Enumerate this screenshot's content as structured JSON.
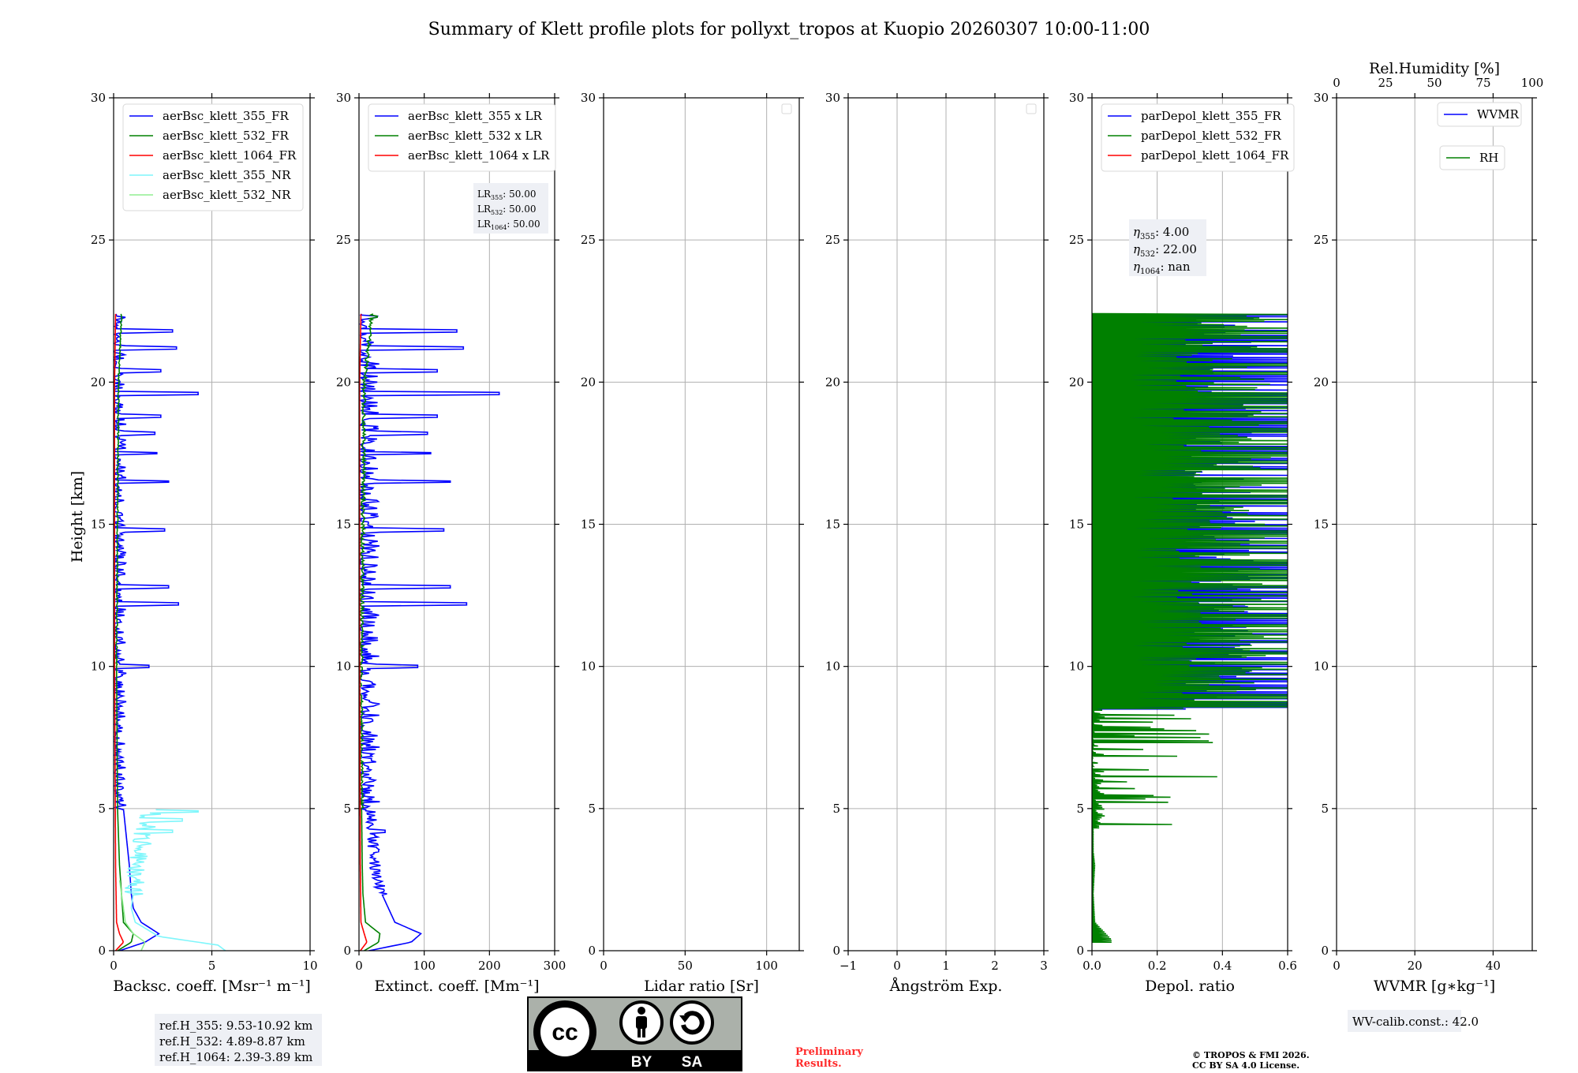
{
  "title": "Summary of Klett profile plots for pollyxt_tropos at Kuopio 20260307 10:00-11:00",
  "colors": {
    "blue": "#0000ff",
    "green": "#008000",
    "red": "#ff0000",
    "cyan": "#7ff6fb",
    "lightgreen": "#90ee90",
    "grid": "#b0b0b0",
    "box": "#eef0f5",
    "notice": "#ff2a2a"
  },
  "ylabel": "Height [km]",
  "height_ticks": [
    0,
    5,
    10,
    15,
    20,
    25,
    30
  ],
  "chart_data": [
    {
      "id": "backscatter",
      "type": "line",
      "xlabel": "Backsc. coeff. [Msr$^{-1}$ m$^{-1}$]",
      "xlabel_display": "Backsc. coeff. [Msr⁻¹ m⁻¹]",
      "xlim": [
        0,
        10
      ],
      "ylim": [
        0,
        30
      ],
      "xticks": [
        0,
        5,
        10
      ],
      "xtick_labels": [
        "0",
        "5",
        "10"
      ],
      "legend": [
        "aerBsc_klett_355_FR",
        "aerBsc_klett_532_FR",
        "aerBsc_klett_1064_FR",
        "aerBsc_klett_355_NR",
        "aerBsc_klett_532_NR"
      ],
      "series": [
        {
          "name": "aerBsc_klett_355_FR",
          "color": "blue",
          "profile": [
            [
              0.0,
              0.3
            ],
            [
              0.3,
              1.6
            ],
            [
              0.6,
              2.3
            ],
            [
              1.0,
              1.4
            ],
            [
              1.5,
              1.0
            ],
            [
              2.0,
              0.9
            ],
            [
              3.0,
              0.8
            ],
            [
              4.0,
              0.65
            ],
            [
              5.0,
              0.5
            ]
          ],
          "noise": {
            "from": 5.0,
            "to": 22.4,
            "base": 0.05,
            "amp": 0.6,
            "max": 4.3,
            "spikes": [
              [
                19.6,
                4.3
              ],
              [
                16.5,
                2.8
              ],
              [
                12.2,
                3.3
              ],
              [
                21.2,
                3.2
              ],
              [
                17.5,
                2.2
              ],
              [
                14.8,
                2.6
              ],
              [
                12.8,
                2.8
              ],
              [
                18.2,
                2.1
              ],
              [
                10.0,
                1.8
              ],
              [
                20.4,
                2.4
              ],
              [
                21.8,
                3.0
              ],
              [
                18.8,
                2.4
              ]
            ]
          }
        },
        {
          "name": "aerBsc_klett_532_FR",
          "color": "green",
          "profile": [
            [
              0.0,
              0.2
            ],
            [
              0.3,
              0.9
            ],
            [
              0.6,
              1.0
            ],
            [
              1.0,
              0.5
            ],
            [
              2.0,
              0.4
            ],
            [
              3.0,
              0.3
            ],
            [
              5.0,
              0.2
            ],
            [
              10.0,
              0.15
            ],
            [
              15.0,
              0.2
            ],
            [
              20.0,
              0.25
            ],
            [
              22.4,
              0.4
            ]
          ],
          "noise": {
            "from": 10.0,
            "to": 22.4,
            "base": 0.0,
            "amp": 0.12,
            "max": 0.6,
            "spikes": []
          }
        },
        {
          "name": "aerBsc_klett_1064_FR",
          "color": "red",
          "profile": [
            [
              0.0,
              0.1
            ],
            [
              0.3,
              0.5
            ],
            [
              0.6,
              0.3
            ],
            [
              1.0,
              0.15
            ],
            [
              3.0,
              0.1
            ],
            [
              10.0,
              0.05
            ],
            [
              20.0,
              0.05
            ],
            [
              22.4,
              0.1
            ]
          ],
          "noise": null
        },
        {
          "name": "aerBsc_klett_355_NR",
          "color": "cyan",
          "profile": [
            [
              0.0,
              5.7
            ],
            [
              0.2,
              5.3
            ],
            [
              0.5,
              2.3
            ],
            [
              1.0,
              1.1
            ],
            [
              1.5,
              0.9
            ],
            [
              2.0,
              1.0
            ],
            [
              3.0,
              1.2
            ],
            [
              4.0,
              1.5
            ],
            [
              5.0,
              2.0
            ]
          ],
          "noise": {
            "from": 2.0,
            "to": 5.0,
            "base": 0.3,
            "amp": 1.8,
            "max": 4.3,
            "spikes": [
              [
                4.9,
                4.3
              ],
              [
                4.6,
                3.5
              ],
              [
                4.2,
                3.0
              ]
            ]
          }
        },
        {
          "name": "aerBsc_klett_532_NR",
          "color": "lightgreen",
          "profile": [
            [
              0.0,
              1.4
            ],
            [
              0.3,
              1.6
            ],
            [
              0.6,
              1.0
            ],
            [
              1.0,
              0.6
            ],
            [
              2.0,
              0.4
            ],
            [
              2.5,
              0.3
            ]
          ],
          "noise": null
        }
      ],
      "info_box": [
        "ref.H_355: 9.53-10.92 km",
        "ref.H_532: 4.89-8.87 km",
        "ref.H_1064: 2.39-3.89 km"
      ]
    },
    {
      "id": "extinction",
      "type": "line",
      "xlabel": "Extinct. coeff. [Mm$^{-1}$]",
      "xlabel_display": "Extinct. coeff. [Mm⁻¹]",
      "xlim": [
        0,
        300
      ],
      "ylim": [
        0,
        30
      ],
      "xticks": [
        0,
        100,
        200,
        300
      ],
      "xtick_labels": [
        "0",
        "100",
        "200",
        "300"
      ],
      "legend": [
        "aerBsc_klett_355 x LR",
        "aerBsc_klett_532 x LR",
        "aerBsc_klett_1064 x LR"
      ],
      "series": [
        {
          "name": "aerBsc_klett_355 x LR",
          "color": "blue",
          "profile": [
            [
              0.0,
              15
            ],
            [
              0.3,
              80
            ],
            [
              0.6,
              95
            ],
            [
              1.0,
              55
            ],
            [
              1.5,
              45
            ],
            [
              2.0,
              35
            ],
            [
              3.0,
              25
            ],
            [
              4.0,
              20
            ],
            [
              5.0,
              18
            ]
          ],
          "noise": {
            "from": 2.0,
            "to": 22.4,
            "base": 2,
            "amp": 30,
            "max": 215,
            "spikes": [
              [
                19.6,
                215
              ],
              [
                16.5,
                140
              ],
              [
                12.2,
                165
              ],
              [
                21.2,
                160
              ],
              [
                17.5,
                110
              ],
              [
                14.8,
                130
              ],
              [
                12.8,
                140
              ],
              [
                18.2,
                105
              ],
              [
                10.0,
                90
              ],
              [
                20.4,
                120
              ],
              [
                21.8,
                150
              ],
              [
                18.8,
                120
              ],
              [
                4.2,
                40
              ],
              [
                3.5,
                30
              ]
            ]
          }
        },
        {
          "name": "aerBsc_klett_532 x LR",
          "color": "green",
          "profile": [
            [
              0.0,
              8
            ],
            [
              0.3,
              30
            ],
            [
              0.6,
              32
            ],
            [
              1.0,
              10
            ],
            [
              2.0,
              6
            ],
            [
              3.0,
              5
            ],
            [
              5.0,
              4
            ],
            [
              10.0,
              3
            ],
            [
              15.0,
              6
            ],
            [
              20.0,
              8
            ],
            [
              22.4,
              20
            ]
          ],
          "noise": {
            "from": 5.0,
            "to": 22.4,
            "base": 0,
            "amp": 10,
            "max": 30,
            "spikes": [
              [
                22.3,
                28
              ]
            ]
          }
        },
        {
          "name": "aerBsc_klett_1064 x LR",
          "color": "red",
          "profile": [
            [
              0.0,
              2
            ],
            [
              0.3,
              12
            ],
            [
              0.6,
              8
            ],
            [
              1.0,
              3
            ],
            [
              3.0,
              2
            ],
            [
              10.0,
              1
            ],
            [
              20.0,
              1
            ],
            [
              22.4,
              3
            ]
          ],
          "noise": null
        }
      ],
      "info_box": [
        "LR355: 50.00",
        "LR532: 50.00",
        "LR1064: 50.00"
      ]
    },
    {
      "id": "lidar_ratio",
      "type": "line",
      "xlabel": "Lidar ratio [Sr]",
      "xlabel_display": "Lidar ratio [Sr]",
      "xlim": [
        0,
        120
      ],
      "ylim": [
        0,
        30
      ],
      "xticks": [
        0,
        50,
        100
      ],
      "xtick_labels": [
        "0",
        "50",
        "100"
      ],
      "legend": [],
      "series": []
    },
    {
      "id": "angstrom",
      "type": "line",
      "xlabel": "Ångström Exp.",
      "xlabel_display": "Ångström Exp.",
      "xlim": [
        -1,
        3
      ],
      "ylim": [
        0,
        30
      ],
      "xticks": [
        -1,
        0,
        1,
        2,
        3
      ],
      "xtick_labels": [
        "−1",
        "0",
        "1",
        "2",
        "3"
      ],
      "legend": [],
      "series": []
    },
    {
      "id": "depol",
      "type": "line",
      "xlabel": "Depol. ratio",
      "xlabel_display": "Depol. ratio",
      "xlim": [
        0,
        0.6
      ],
      "ylim": [
        0,
        30
      ],
      "xticks": [
        0.0,
        0.2,
        0.4,
        0.6
      ],
      "xtick_labels": [
        "0.0",
        "0.2",
        "0.4",
        "0.6"
      ],
      "legend": [
        "parDepol_klett_355_FR",
        "parDepol_klett_532_FR",
        "parDepol_klett_1064_FR"
      ],
      "series": [
        {
          "name": "parDepol_klett_355_FR",
          "color": "blue",
          "range": [
            8.5,
            22.4
          ],
          "typical_max": 0.6
        },
        {
          "name": "parDepol_klett_532_FR",
          "color": "green",
          "range": [
            0.3,
            22.4
          ],
          "typical_max": 0.6,
          "near_surface": [
            [
              0.4,
              0.06
            ],
            [
              1.0,
              0.01
            ],
            [
              2.0,
              0.005
            ],
            [
              3.0,
              0.01
            ],
            [
              3.5,
              0.005
            ]
          ]
        }
      ],
      "info_box": [
        "η355: 4.00",
        "η532: 22.00",
        "η1064: nan"
      ]
    },
    {
      "id": "wvmr",
      "type": "line",
      "xlabel": "WVMR [$g*kg^{-1}$]",
      "xlabel_display": "WVMR [g∗kg⁻¹]",
      "xlim": [
        0,
        50
      ],
      "ylim": [
        0,
        30
      ],
      "xticks": [
        0,
        20,
        40
      ],
      "xtick_labels": [
        "0",
        "20",
        "40"
      ],
      "top_axis_label": "Rel.Humidity [%]",
      "top_xlim": [
        0,
        100
      ],
      "top_xticks": [
        0,
        25,
        50,
        75,
        100
      ],
      "top_xtick_labels": [
        "0",
        "25",
        "50",
        "75",
        "100"
      ],
      "legend": [
        "WVMR",
        "RH"
      ],
      "series": [],
      "info_box": [
        "WV-calib.const.: 42.0"
      ]
    }
  ],
  "subscripts": {
    "lr": [
      [
        "LR",
        "355",
        ": 50.00"
      ],
      [
        "LR",
        "532",
        ": 50.00"
      ],
      [
        "LR",
        "1064",
        ": 50.00"
      ]
    ],
    "eta": [
      [
        "η",
        "355",
        ": 4.00"
      ],
      [
        "η",
        "532",
        ": 22.00"
      ],
      [
        "η",
        "1064",
        ": nan"
      ]
    ]
  },
  "footer": {
    "preliminary": [
      "Preliminary",
      "Results."
    ],
    "copyright": [
      "© TROPOS & FMI 2026.",
      "CC BY SA 4.0 License."
    ],
    "license_badge": [
      "BY",
      "SA"
    ],
    "license_logo_text": "cc"
  }
}
